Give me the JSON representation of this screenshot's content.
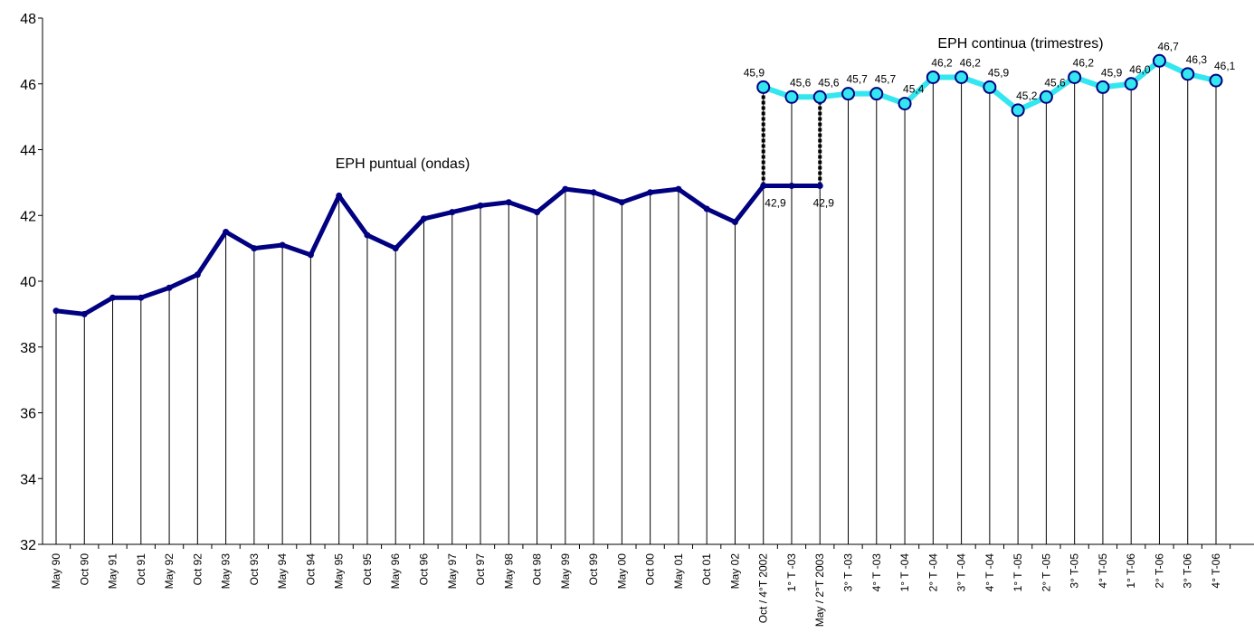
{
  "chart_data": {
    "type": "line",
    "categories": [
      "May 90",
      "Oct 90",
      "May 91",
      "Oct 91",
      "May 92",
      "Oct 92",
      "May 93",
      "Oct 93",
      "May 94",
      "Oct 94",
      "May 95",
      "Oct 95",
      "May 96",
      "Oct 96",
      "May 97",
      "Oct 97",
      "May 98",
      "Oct 98",
      "May 99",
      "Oct 99",
      "May 00",
      "Oct 00",
      "May 01",
      "Oct 01",
      "May 02",
      "Oct / 4°T 2002",
      "1° T -03",
      "May / 2°T 2003",
      "3° T -03",
      "4° T -03",
      "1° T -04",
      "2° T -04",
      "3° T -04",
      "4° T -04",
      "1° T -05",
      "2° T -05",
      "3° T-05",
      "4° T-05",
      "1° T-06",
      "2° T-06",
      "3° T-06",
      "4° T-06"
    ],
    "series": [
      {
        "name": "EPH puntual (ondas)",
        "color": "#000080",
        "values": [
          39.1,
          39.0,
          39.5,
          39.5,
          39.8,
          40.2,
          41.5,
          41.0,
          41.1,
          40.8,
          42.6,
          41.4,
          41.0,
          41.9,
          42.1,
          42.3,
          42.4,
          42.1,
          42.8,
          42.7,
          42.4,
          42.7,
          42.8,
          42.2,
          41.8,
          42.9,
          42.9,
          42.9,
          null,
          null,
          null,
          null,
          null,
          null,
          null,
          null,
          null,
          null,
          null,
          null,
          null,
          null
        ],
        "value_labels": [
          null,
          null,
          null,
          null,
          null,
          null,
          null,
          null,
          null,
          null,
          null,
          null,
          null,
          null,
          null,
          null,
          null,
          null,
          null,
          null,
          null,
          null,
          null,
          null,
          null,
          null,
          "42,9",
          "42,9",
          null,
          null,
          null,
          null,
          null,
          null,
          null,
          null,
          null,
          null,
          null,
          null,
          null,
          null
        ]
      },
      {
        "name": "EPH continua (trimestres)",
        "color": "#33e6f0",
        "values": [
          null,
          null,
          null,
          null,
          null,
          null,
          null,
          null,
          null,
          null,
          null,
          null,
          null,
          null,
          null,
          null,
          null,
          null,
          null,
          null,
          null,
          null,
          null,
          null,
          null,
          45.9,
          45.6,
          45.6,
          45.7,
          45.7,
          45.4,
          46.2,
          46.2,
          45.9,
          45.2,
          45.6,
          46.2,
          45.9,
          46.0,
          46.7,
          46.3,
          46.1
        ],
        "value_labels": [
          null,
          null,
          null,
          null,
          null,
          null,
          null,
          null,
          null,
          null,
          null,
          null,
          null,
          null,
          null,
          null,
          null,
          null,
          null,
          null,
          null,
          null,
          null,
          null,
          null,
          "45,9",
          "45,6",
          "45,6",
          "45,7",
          "45,7",
          "45,4",
          "46,2",
          "46,2",
          "45,9",
          "45,2",
          "45,6",
          "46,2",
          "45,9",
          "46,0",
          "46,7",
          "46,3",
          "46,1"
        ]
      }
    ],
    "ylim": [
      32,
      48
    ],
    "yticks": [
      32,
      34,
      36,
      38,
      40,
      42,
      44,
      46,
      48
    ],
    "grid": false
  }
}
